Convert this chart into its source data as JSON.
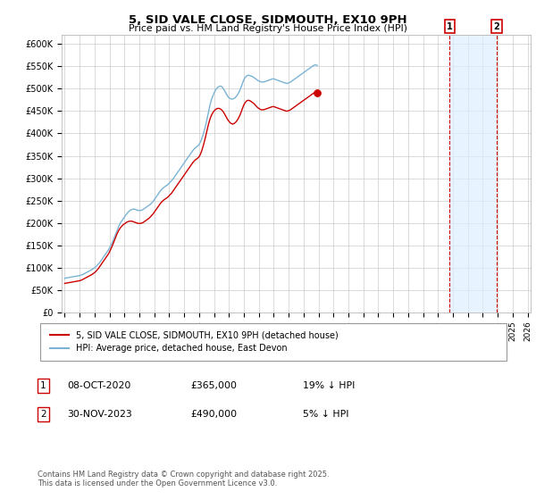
{
  "title": "5, SID VALE CLOSE, SIDMOUTH, EX10 9PH",
  "subtitle": "Price paid vs. HM Land Registry's House Price Index (HPI)",
  "ylim": [
    0,
    620000
  ],
  "yticks": [
    0,
    50000,
    100000,
    150000,
    200000,
    250000,
    300000,
    350000,
    400000,
    450000,
    500000,
    550000,
    600000
  ],
  "ytick_labels": [
    "£0",
    "£50K",
    "£100K",
    "£150K",
    "£200K",
    "£250K",
    "£300K",
    "£350K",
    "£400K",
    "£450K",
    "£500K",
    "£550K",
    "£600K"
  ],
  "hpi_color": "#7ab3d4",
  "price_color": "#cc0000",
  "shade_color": "#ddeeff",
  "dashed_color": "#cc0000",
  "bg_color": "#ffffff",
  "grid_color": "#cccccc",
  "sale1_year": 2020.78,
  "sale1_price": 365000,
  "sale2_year": 2023.92,
  "sale2_price": 490000,
  "legend_line1": "5, SID VALE CLOSE, SIDMOUTH, EX10 9PH (detached house)",
  "legend_line2": "HPI: Average price, detached house, East Devon",
  "footer": "Contains HM Land Registry data © Crown copyright and database right 2025.\nThis data is licensed under the Open Government Licence v3.0.",
  "x_start_year": 1995,
  "x_end_year": 2026,
  "hpi_data": [
    76000,
    77000,
    77500,
    78000,
    78500,
    79000,
    79500,
    80000,
    80500,
    81000,
    81500,
    82000,
    82500,
    83500,
    84500,
    85500,
    87000,
    88500,
    90000,
    91500,
    93000,
    94500,
    96000,
    98000,
    100000,
    102000,
    105000,
    108000,
    111000,
    115000,
    119000,
    123000,
    127000,
    131000,
    135000,
    139000,
    144000,
    149000,
    155000,
    161000,
    168000,
    175000,
    182000,
    189000,
    196000,
    201000,
    205000,
    209000,
    213000,
    217000,
    221000,
    224000,
    227000,
    229000,
    230000,
    231000,
    231000,
    230000,
    229000,
    228000,
    228000,
    228000,
    229000,
    230000,
    232000,
    234000,
    236000,
    238000,
    240000,
    242000,
    245000,
    248000,
    252000,
    256000,
    260000,
    264000,
    268000,
    272000,
    275000,
    278000,
    280000,
    282000,
    284000,
    286000,
    289000,
    292000,
    295000,
    298000,
    302000,
    306000,
    310000,
    314000,
    318000,
    322000,
    326000,
    330000,
    334000,
    338000,
    342000,
    346000,
    350000,
    354000,
    358000,
    362000,
    365000,
    368000,
    370000,
    372000,
    375000,
    380000,
    387000,
    395000,
    404000,
    415000,
    427000,
    440000,
    453000,
    466000,
    476000,
    483000,
    490000,
    496000,
    500000,
    503000,
    505000,
    506000,
    505000,
    502000,
    498000,
    493000,
    488000,
    483000,
    480000,
    478000,
    477000,
    477000,
    478000,
    480000,
    483000,
    487000,
    492000,
    498000,
    505000,
    513000,
    520000,
    525000,
    528000,
    530000,
    530000,
    529000,
    528000,
    527000,
    525000,
    523000,
    521000,
    519000,
    517000,
    516000,
    515000,
    515000,
    515000,
    516000,
    517000,
    518000,
    519000,
    520000,
    521000,
    522000,
    522000,
    521000,
    520000,
    519000,
    518000,
    517000,
    516000,
    515000,
    514000,
    513000,
    512000,
    512000,
    513000,
    514000,
    516000,
    518000,
    520000,
    522000,
    524000,
    526000,
    528000,
    530000,
    532000,
    534000,
    536000,
    538000,
    540000,
    542000,
    544000,
    546000,
    548000,
    550000,
    552000,
    553000,
    553000,
    552000
  ],
  "price_data": [
    65000,
    65500,
    66000,
    66500,
    67000,
    67500,
    68000,
    68500,
    69000,
    69500,
    70000,
    70500,
    71000,
    72000,
    73000,
    74500,
    76000,
    77500,
    79000,
    80500,
    82000,
    83500,
    85000,
    87000,
    89000,
    91500,
    94500,
    98000,
    102000,
    106000,
    110000,
    114000,
    118000,
    122000,
    126000,
    130000,
    135000,
    141000,
    147000,
    154000,
    161000,
    168000,
    175000,
    181000,
    186000,
    190000,
    193000,
    196000,
    198000,
    200000,
    202000,
    203000,
    204000,
    204000,
    204000,
    203000,
    202000,
    201000,
    200000,
    199000,
    199000,
    199000,
    200000,
    201000,
    203000,
    205000,
    207000,
    209000,
    211000,
    214000,
    217000,
    220000,
    224000,
    228000,
    232000,
    236000,
    240000,
    244000,
    247000,
    250000,
    252000,
    254000,
    256000,
    258000,
    261000,
    264000,
    267000,
    271000,
    275000,
    279000,
    283000,
    287000,
    291000,
    295000,
    299000,
    303000,
    307000,
    311000,
    315000,
    319000,
    323000,
    327000,
    331000,
    335000,
    338000,
    341000,
    343000,
    345000,
    348000,
    353000,
    360000,
    369000,
    379000,
    390000,
    402000,
    414000,
    425000,
    434000,
    441000,
    446000,
    450000,
    453000,
    455000,
    456000,
    456000,
    455000,
    453000,
    450000,
    446000,
    441000,
    436000,
    431000,
    427000,
    424000,
    422000,
    421000,
    422000,
    424000,
    427000,
    431000,
    436000,
    442000,
    449000,
    457000,
    464000,
    469000,
    472000,
    474000,
    474000,
    473000,
    471000,
    469000,
    467000,
    464000,
    461000,
    458000,
    456000,
    454000,
    453000,
    453000,
    453000,
    454000,
    455000,
    456000,
    457000,
    458000,
    459000,
    460000,
    460000,
    459000,
    458000,
    457000,
    456000,
    455000,
    454000,
    453000,
    452000,
    451000,
    450000,
    450000,
    451000,
    452000,
    454000,
    456000,
    458000,
    460000,
    462000,
    464000,
    466000,
    468000,
    470000,
    472000,
    474000,
    476000,
    478000,
    480000,
    482000,
    484000,
    486000,
    488000,
    490000,
    491000,
    491000,
    490000
  ]
}
